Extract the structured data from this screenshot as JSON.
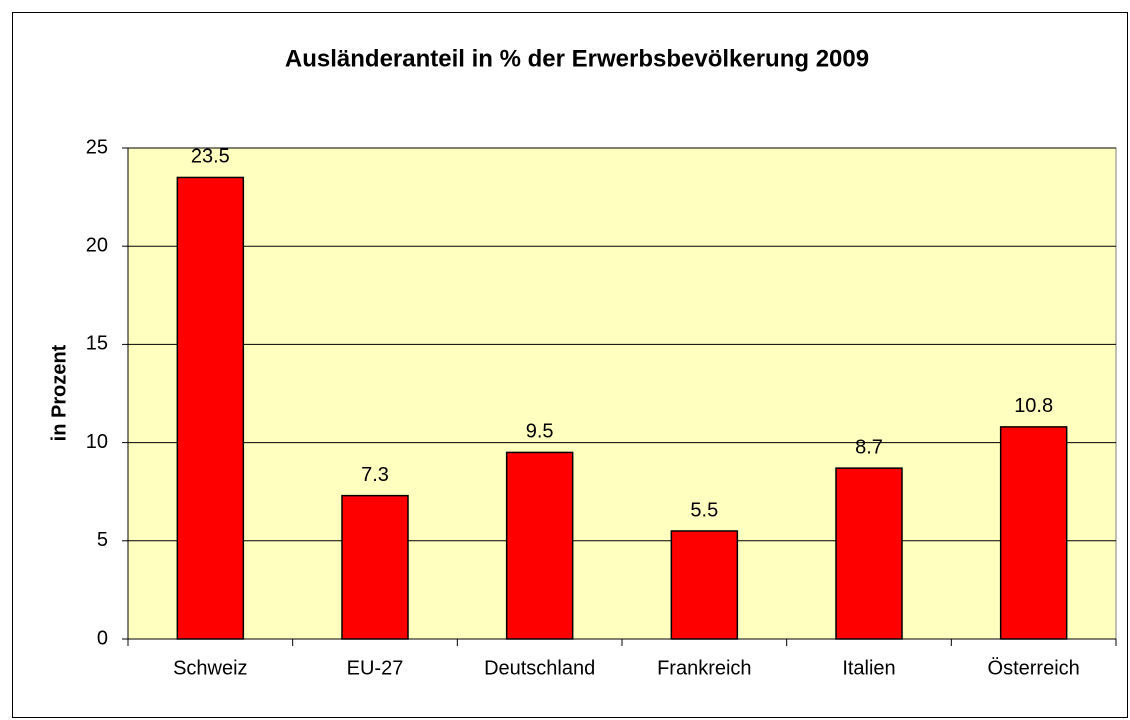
{
  "chart_data": {
    "type": "bar",
    "title": "Ausländeranteil in % der Erwerbsbevölkerung 2009",
    "y_label": "in Prozent",
    "categories": [
      "Schweiz",
      "EU-27",
      "Deutschland",
      "Frankreich",
      "Italien",
      "Österreich"
    ],
    "values": [
      23.5,
      7.3,
      9.5,
      5.5,
      8.7,
      10.8
    ],
    "color": "#ff0000",
    "ylim": [
      0,
      25
    ],
    "yticks": [
      0,
      5,
      10,
      15,
      20,
      25
    ],
    "grid": true
  }
}
